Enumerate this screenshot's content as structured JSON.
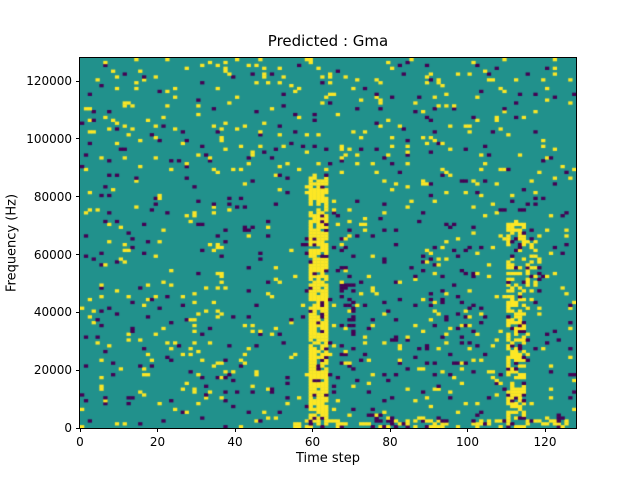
{
  "chart_data": {
    "type": "heatmap",
    "title": "Predicted : Gma",
    "xlabel": "Time step",
    "ylabel": "Frequency (Hz)",
    "x_ticks": [
      0,
      20,
      40,
      60,
      80,
      100,
      120
    ],
    "y_ticks": [
      0,
      20000,
      40000,
      60000,
      80000,
      100000,
      120000
    ],
    "xlim": [
      0,
      128
    ],
    "ylim": [
      0,
      128000
    ],
    "grid": {
      "cols": 128,
      "rows": 128,
      "cell_x_units": 1,
      "cell_y_units": 1000
    },
    "value_colors": {
      "low": "#440154",
      "mid": "#21918c",
      "high": "#fde725"
    },
    "legend": "none",
    "gridlines": "off",
    "description": "Ternary classification mask over a spectrogram grid: mostly mid (teal) cells with sparse high (yellow) and low (purple) cells scattered throughout; a dense yellow vertical band near time steps 59-63 spanning 0-87 kHz, a second yellow band near time steps 110-115 spanning 0-70 kHz, yellow streaks along the bottom rows between steps 55-95 and 100-126, and slightly denser yellow speckle above 100 kHz.",
    "generation": {
      "seed": 7,
      "base": {
        "yellow": 0.033,
        "purple": 0.028
      },
      "regions": [
        {
          "x0": 0,
          "x1": 127,
          "y0": 100,
          "y1": 127,
          "yellow": 0.045,
          "purple": 0.02
        },
        {
          "x0": 80,
          "x1": 100,
          "y0": 20,
          "y1": 70,
          "yellow": 0.03,
          "purple": 0.07
        },
        {
          "x0": 67,
          "x1": 70,
          "y0": 20,
          "y1": 62,
          "yellow": 0.05,
          "purple": 0.25
        },
        {
          "x0": 59,
          "x1": 63,
          "y0": 0,
          "y1": 87,
          "yellow": 0.72,
          "purple": 0.1
        },
        {
          "x0": 110,
          "x1": 114,
          "y0": 0,
          "y1": 70,
          "yellow": 0.55,
          "purple": 0.1
        },
        {
          "x0": 112,
          "x1": 118,
          "y0": 40,
          "y1": 64,
          "yellow": 0.25,
          "purple": 0.1
        },
        {
          "x0": 55,
          "x1": 95,
          "y0": 0,
          "y1": 2,
          "yellow": 0.5,
          "purple": 0.08
        },
        {
          "x0": 100,
          "x1": 126,
          "y0": 0,
          "y1": 2,
          "yellow": 0.45,
          "purple": 0.08
        },
        {
          "x0": 74,
          "x1": 80,
          "y0": 1,
          "y1": 4,
          "yellow": 0.15,
          "purple": 0.5
        }
      ]
    }
  }
}
